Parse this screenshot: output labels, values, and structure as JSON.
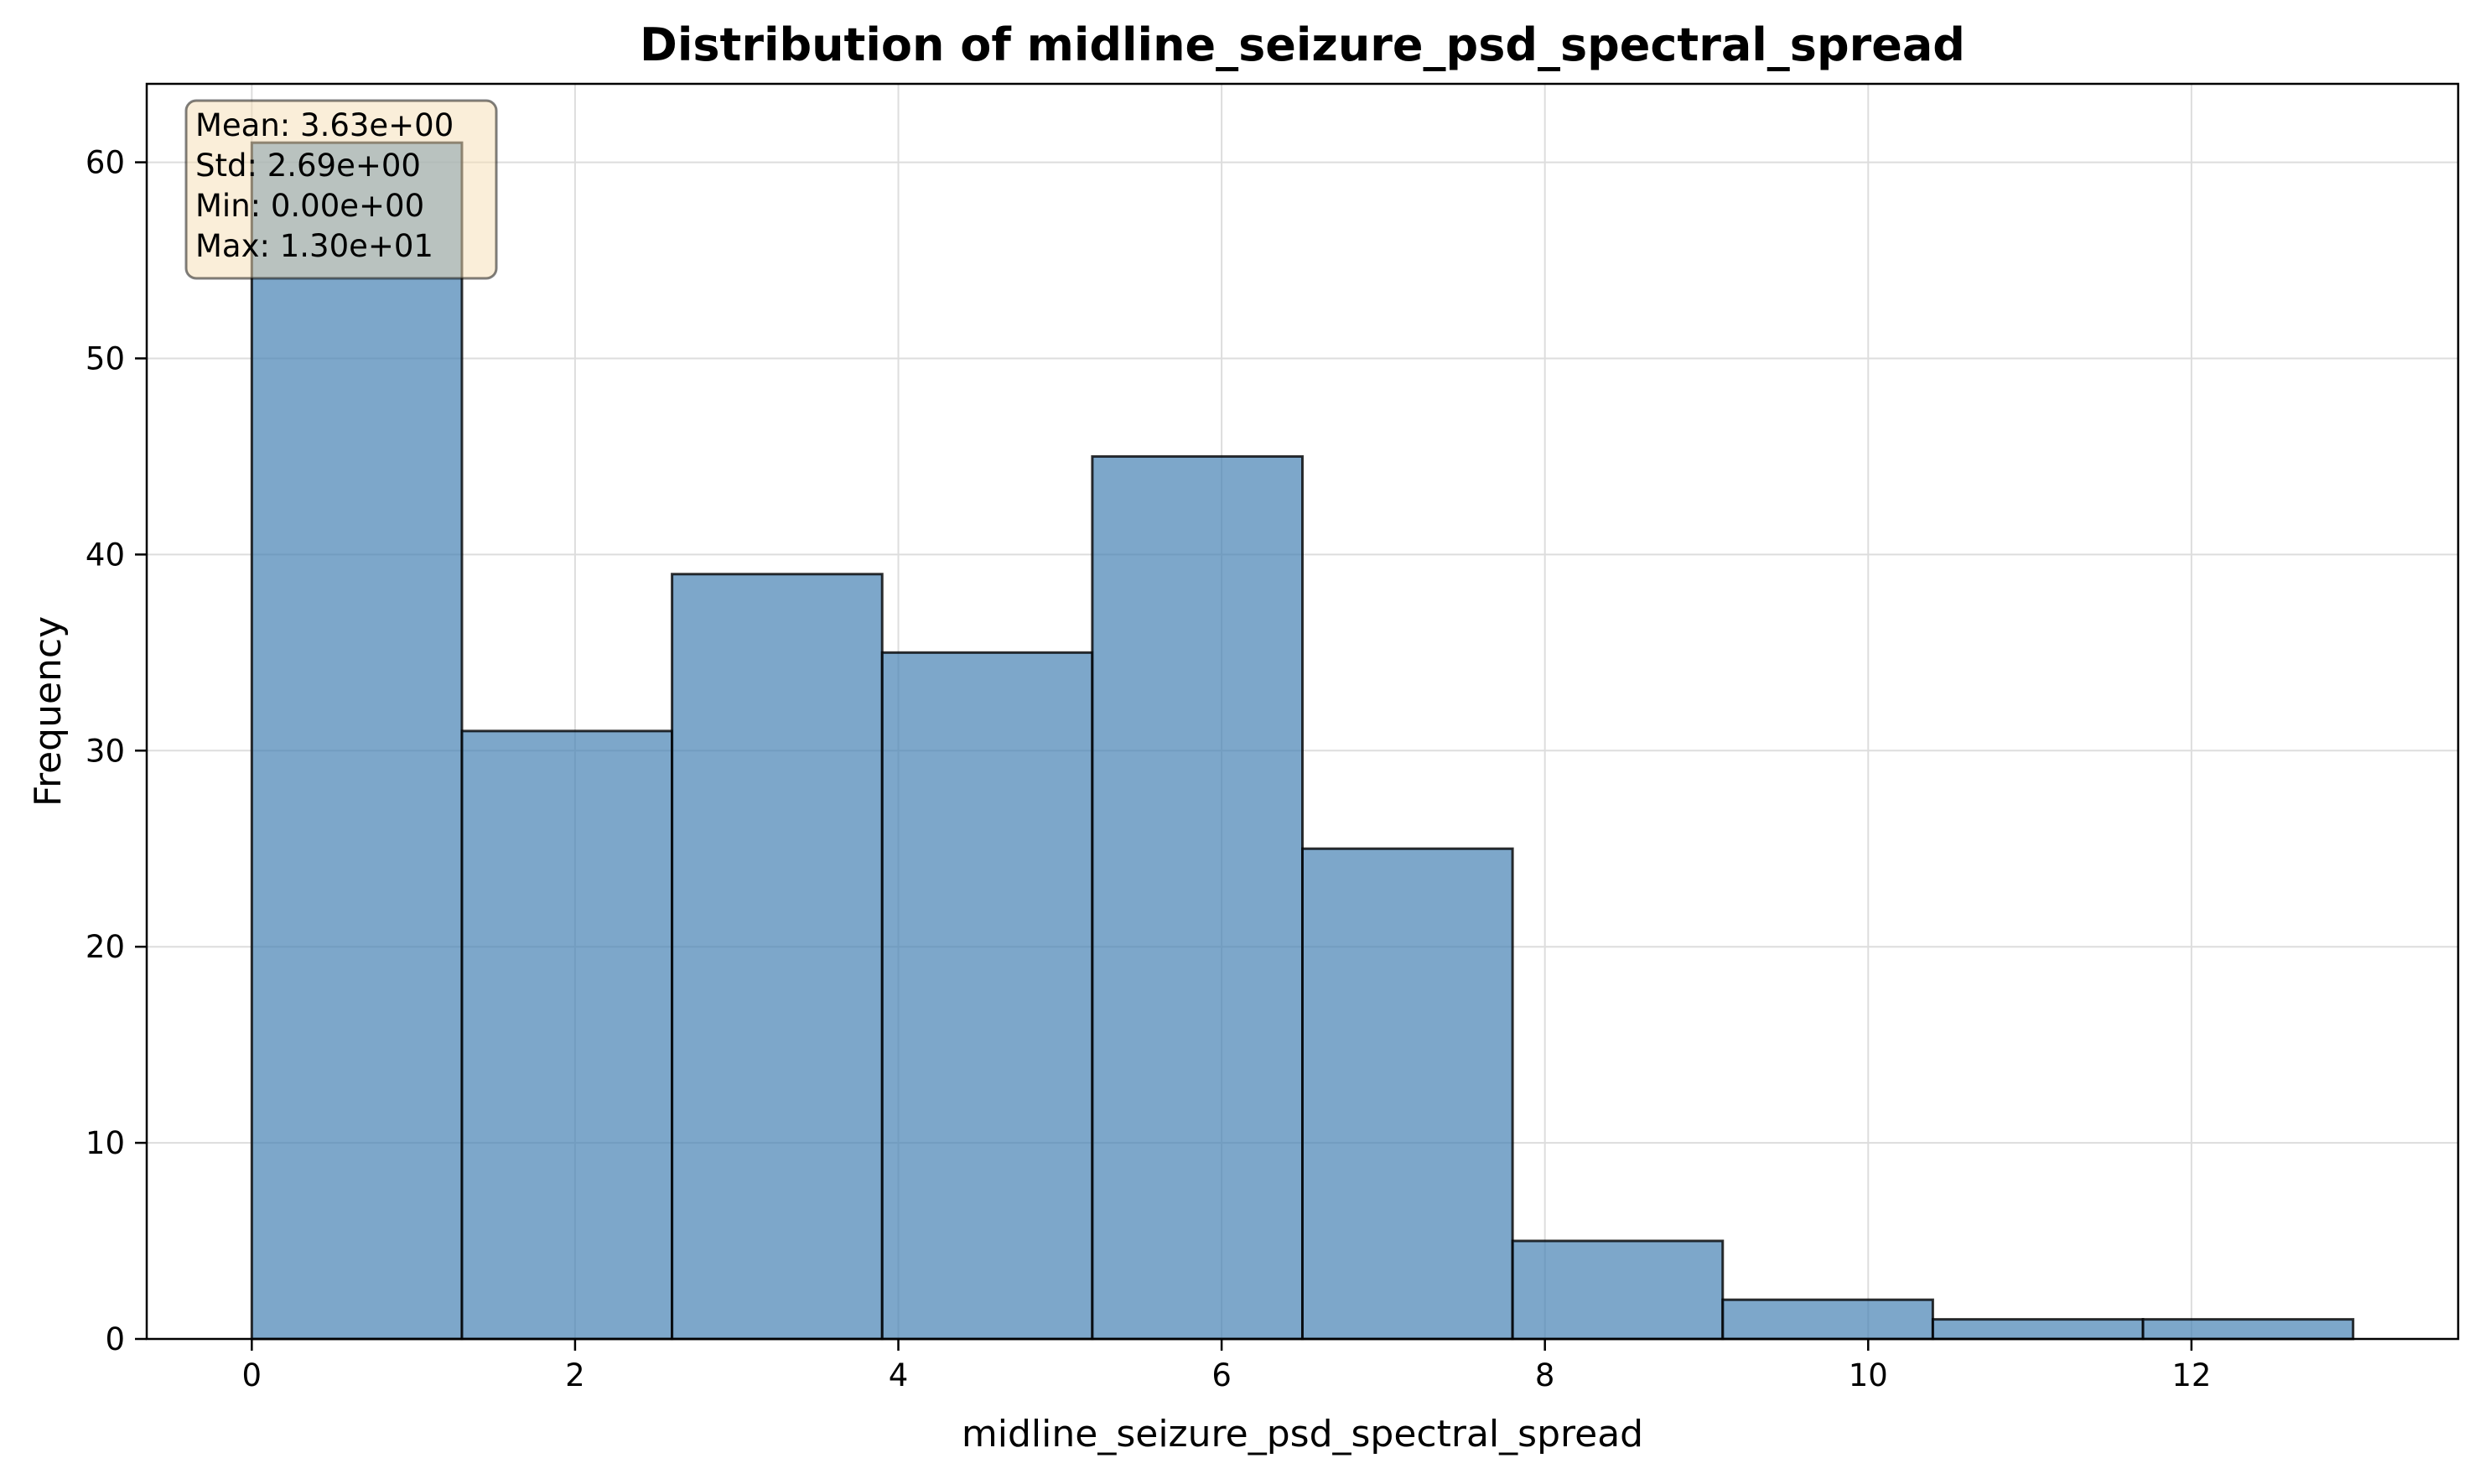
{
  "chart_data": {
    "type": "bar",
    "subtype": "histogram",
    "title": "Distribution of midline_seizure_psd_spectral_spread",
    "xlabel": "midline_seizure_psd_spectral_spread",
    "ylabel": "Frequency",
    "bins": [
      {
        "start": 0.0,
        "end": 1.3,
        "count": 61
      },
      {
        "start": 1.3,
        "end": 2.6,
        "count": 31
      },
      {
        "start": 2.6,
        "end": 3.9,
        "count": 39
      },
      {
        "start": 3.9,
        "end": 5.2,
        "count": 35
      },
      {
        "start": 5.2,
        "end": 6.5,
        "count": 45
      },
      {
        "start": 6.5,
        "end": 7.8,
        "count": 25
      },
      {
        "start": 7.8,
        "end": 9.1,
        "count": 5
      },
      {
        "start": 9.1,
        "end": 10.4,
        "count": 2
      },
      {
        "start": 10.4,
        "end": 11.7,
        "count": 1
      },
      {
        "start": 11.7,
        "end": 13.0,
        "count": 1
      }
    ],
    "xlim": [
      -0.65,
      13.65
    ],
    "ylim": [
      0,
      64
    ],
    "xticks": [
      0,
      2,
      4,
      6,
      8,
      10,
      12
    ],
    "xtick_labels": [
      "0",
      "2",
      "4",
      "6",
      "8",
      "10",
      "12"
    ],
    "yticks": [
      0,
      10,
      20,
      30,
      40,
      50,
      60
    ],
    "ytick_labels": [
      "0",
      "10",
      "20",
      "30",
      "40",
      "50",
      "60"
    ],
    "grid": true,
    "bar_color": "#4682b4",
    "bar_edge_color": "#000000",
    "stats_box": {
      "position": "top-left",
      "background": "#f5deb3",
      "lines": [
        "Mean: 3.63e+00",
        "Std: 2.69e+00",
        "Min: 0.00e+00",
        "Max: 1.30e+01"
      ]
    }
  }
}
